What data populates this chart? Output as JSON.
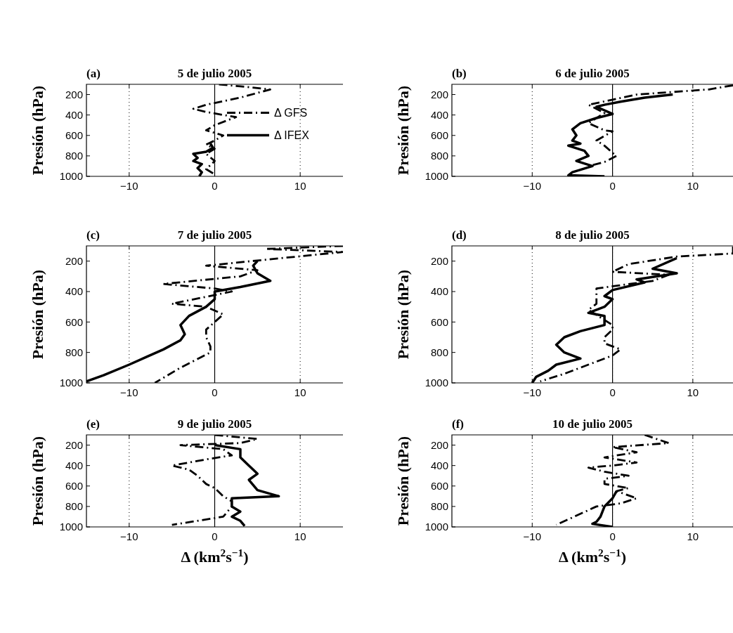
{
  "chart_data": [
    {
      "type": "line",
      "title": "5 de julio 2005",
      "ylabel": "Presión (hPa)",
      "annotations": [
        "(a)"
      ],
      "xlim": [
        -15,
        15
      ],
      "xticks": [
        -10,
        0,
        10
      ],
      "ylim": [
        1000,
        100
      ],
      "yticks": [
        200,
        400,
        600,
        800,
        1000
      ],
      "legend": "right",
      "grid": "x",
      "ref_lines": [
        {
          "axis": "x",
          "value": 0,
          "line_style": "solid",
          "color": "#000000"
        }
      ],
      "series": [
        {
          "name": "Δ GFS",
          "color": "#000000",
          "line_style": "dashed",
          "x": [
            0.5,
            3,
            6.5,
            3,
            -1,
            -2.5,
            -1,
            1,
            2.5,
            0,
            -1,
            1,
            0,
            -1,
            0,
            -1,
            0,
            -1,
            0
          ],
          "values": [
            100,
            120,
            150,
            230,
            300,
            340,
            370,
            400,
            420,
            500,
            550,
            600,
            650,
            690,
            730,
            780,
            850,
            930,
            980
          ]
        },
        {
          "name": "Δ IFEX",
          "color": "#000000",
          "line_style": "solid",
          "x": [
            -0.5,
            -0.2,
            -1,
            -2.5,
            -2,
            -2.5,
            -1.5,
            -2,
            -1.5,
            -1.8
          ],
          "values": [
            680,
            720,
            760,
            780,
            820,
            850,
            880,
            920,
            960,
            1000
          ]
        }
      ]
    },
    {
      "type": "line",
      "title": "6 de julio 2005",
      "ylabel": "Presión (hPa)",
      "annotations": [
        "(b)"
      ],
      "xlim": [
        -20,
        15
      ],
      "xticks": [
        -10,
        0,
        10
      ],
      "ylim": [
        1000,
        100
      ],
      "yticks": [
        200,
        400,
        600,
        800,
        1000
      ],
      "grid": "x",
      "ref_lines": [
        {
          "axis": "x",
          "value": 0,
          "line_style": "solid",
          "color": "#000000"
        }
      ],
      "series": [
        {
          "color": "#000000",
          "line_style": "dashed",
          "x": [
            15,
            12,
            3,
            -3,
            -1,
            -3,
            -1,
            0,
            -2,
            -1,
            0,
            0.5,
            -1,
            -3
          ],
          "values": [
            110,
            150,
            200,
            300,
            380,
            480,
            550,
            560,
            650,
            700,
            770,
            800,
            860,
            900
          ]
        },
        {
          "color": "#000000",
          "line_style": "solid",
          "x": [
            7.5,
            4,
            1,
            -1,
            -2,
            0,
            -2,
            -4,
            -5,
            -4.5,
            -5,
            -4,
            -5.5,
            -3.5,
            -3,
            -4.5,
            -2.5,
            -5,
            -5.5,
            -1
          ],
          "values": [
            200,
            230,
            270,
            300,
            320,
            390,
            430,
            480,
            540,
            600,
            650,
            680,
            700,
            750,
            800,
            850,
            900,
            960,
            990,
            1000
          ]
        }
      ]
    },
    {
      "type": "line",
      "title": "7 de julio 2005",
      "ylabel": "Presión (hPa)",
      "annotations": [
        "(c)"
      ],
      "xlim": [
        -15,
        15
      ],
      "xticks": [
        -10,
        0,
        10
      ],
      "ylim": [
        1000,
        100
      ],
      "yticks": [
        200,
        400,
        600,
        800,
        1000
      ],
      "grid": "x",
      "ref_lines": [
        {
          "axis": "x",
          "value": 0,
          "line_style": "solid",
          "color": "#000000"
        }
      ],
      "series": [
        {
          "color": "#000000",
          "line_style": "dashed",
          "x": [
            15,
            6,
            15,
            -1,
            5,
            3,
            -6,
            0,
            2,
            -5,
            -1,
            1,
            -1,
            -1,
            -0.5,
            -0.5,
            -4,
            -7
          ],
          "values": [
            100,
            120,
            140,
            230,
            260,
            300,
            350,
            380,
            400,
            480,
            500,
            550,
            650,
            700,
            760,
            800,
            900,
            1000
          ]
        },
        {
          "color": "#000000",
          "line_style": "solid",
          "x": [
            5,
            4.5,
            5,
            6.5,
            3,
            0,
            0,
            -1,
            -3,
            -4,
            -3.5,
            -4,
            -6,
            -8,
            -10,
            -13,
            -15
          ],
          "values": [
            200,
            230,
            280,
            330,
            370,
            400,
            450,
            500,
            560,
            620,
            680,
            720,
            780,
            830,
            880,
            950,
            990
          ]
        }
      ]
    },
    {
      "type": "line",
      "title": "8 de julio 2005",
      "ylabel": "Presión (hPa)",
      "annotations": [
        "(d)"
      ],
      "xlim": [
        -20,
        15
      ],
      "xticks": [
        -10,
        0,
        10
      ],
      "ylim": [
        1000,
        100
      ],
      "yticks": [
        200,
        400,
        600,
        800,
        1000
      ],
      "grid": "x",
      "ref_lines": [
        {
          "axis": "x",
          "value": 0,
          "line_style": "solid",
          "color": "#000000"
        }
      ],
      "series": [
        {
          "color": "#000000",
          "line_style": "dashed",
          "x": [
            15,
            15,
            8,
            2,
            0,
            7,
            5,
            -2,
            -2,
            -3,
            0,
            0,
            -1,
            -1,
            1,
            0,
            -3,
            -6,
            -9
          ],
          "values": [
            105,
            150,
            170,
            220,
            270,
            290,
            330,
            380,
            480,
            520,
            620,
            650,
            700,
            740,
            780,
            820,
            880,
            940,
            990
          ]
        },
        {
          "color": "#000000",
          "line_style": "solid",
          "x": [
            8,
            5,
            8,
            3,
            4,
            0,
            -1,
            0,
            -1,
            -3,
            -1,
            -1,
            -4,
            -6,
            -7,
            -6,
            -4,
            -7,
            -8,
            -9.5,
            -10
          ],
          "values": [
            180,
            250,
            280,
            320,
            340,
            390,
            430,
            450,
            500,
            540,
            560,
            620,
            660,
            700,
            750,
            800,
            840,
            880,
            920,
            960,
            1000
          ]
        }
      ]
    },
    {
      "type": "line",
      "title": "9 de julio 2005",
      "xlabel": "Δ (km$^{2}$s$^{−1}$)",
      "ylabel": "Presión (hPa)",
      "annotations": [
        "(e)"
      ],
      "xlim": [
        -15,
        15
      ],
      "xticks": [
        -10,
        0,
        10
      ],
      "ylim": [
        1000,
        100
      ],
      "yticks": [
        200,
        400,
        600,
        800,
        1000
      ],
      "grid": "x",
      "ref_lines": [
        {
          "axis": "x",
          "value": 0,
          "line_style": "solid",
          "color": "#000000"
        }
      ],
      "series": [
        {
          "color": "#000000",
          "line_style": "dashed",
          "x": [
            0,
            5,
            3,
            -4,
            1,
            2,
            -1,
            -5,
            -3,
            -2,
            -1,
            0,
            1,
            2,
            2,
            1,
            -5
          ],
          "values": [
            100,
            140,
            180,
            200,
            240,
            300,
            340,
            400,
            440,
            500,
            580,
            620,
            700,
            750,
            800,
            900,
            980
          ]
        },
        {
          "color": "#000000",
          "line_style": "solid",
          "x": [
            0,
            3,
            3,
            4,
            5,
            4,
            5,
            7.5,
            2,
            2,
            3,
            2,
            3,
            3.5
          ],
          "values": [
            200,
            240,
            320,
            400,
            480,
            540,
            640,
            700,
            720,
            800,
            850,
            900,
            940,
            990
          ]
        }
      ]
    },
    {
      "type": "line",
      "title": "10 de julio 2005",
      "xlabel": "Δ (km$^{2}$s$^{−1}$)",
      "ylabel": "Presión (hPa)",
      "annotations": [
        "(f)"
      ],
      "xlim": [
        -20,
        15
      ],
      "xticks": [
        -10,
        0,
        10
      ],
      "ylim": [
        1000,
        100
      ],
      "yticks": [
        200,
        400,
        600,
        800,
        1000
      ],
      "grid": "x",
      "ref_lines": [
        {
          "axis": "x",
          "value": 0,
          "line_style": "solid",
          "color": "#000000"
        }
      ],
      "series": [
        {
          "color": "#000000",
          "line_style": "dashed",
          "x": [
            4,
            7,
            0,
            3,
            -1,
            3,
            0,
            -3,
            -1,
            2,
            -1,
            -1,
            2,
            0.5,
            3,
            1,
            -2,
            -7
          ],
          "values": [
            100,
            180,
            220,
            270,
            320,
            370,
            400,
            420,
            460,
            500,
            530,
            580,
            620,
            650,
            720,
            770,
            800,
            980
          ]
        },
        {
          "color": "#000000",
          "line_style": "solid",
          "x": [
            0.5,
            0,
            -1,
            -1.5,
            -2,
            -2.5,
            0
          ],
          "values": [
            650,
            720,
            800,
            900,
            950,
            970,
            1000
          ]
        }
      ]
    }
  ]
}
